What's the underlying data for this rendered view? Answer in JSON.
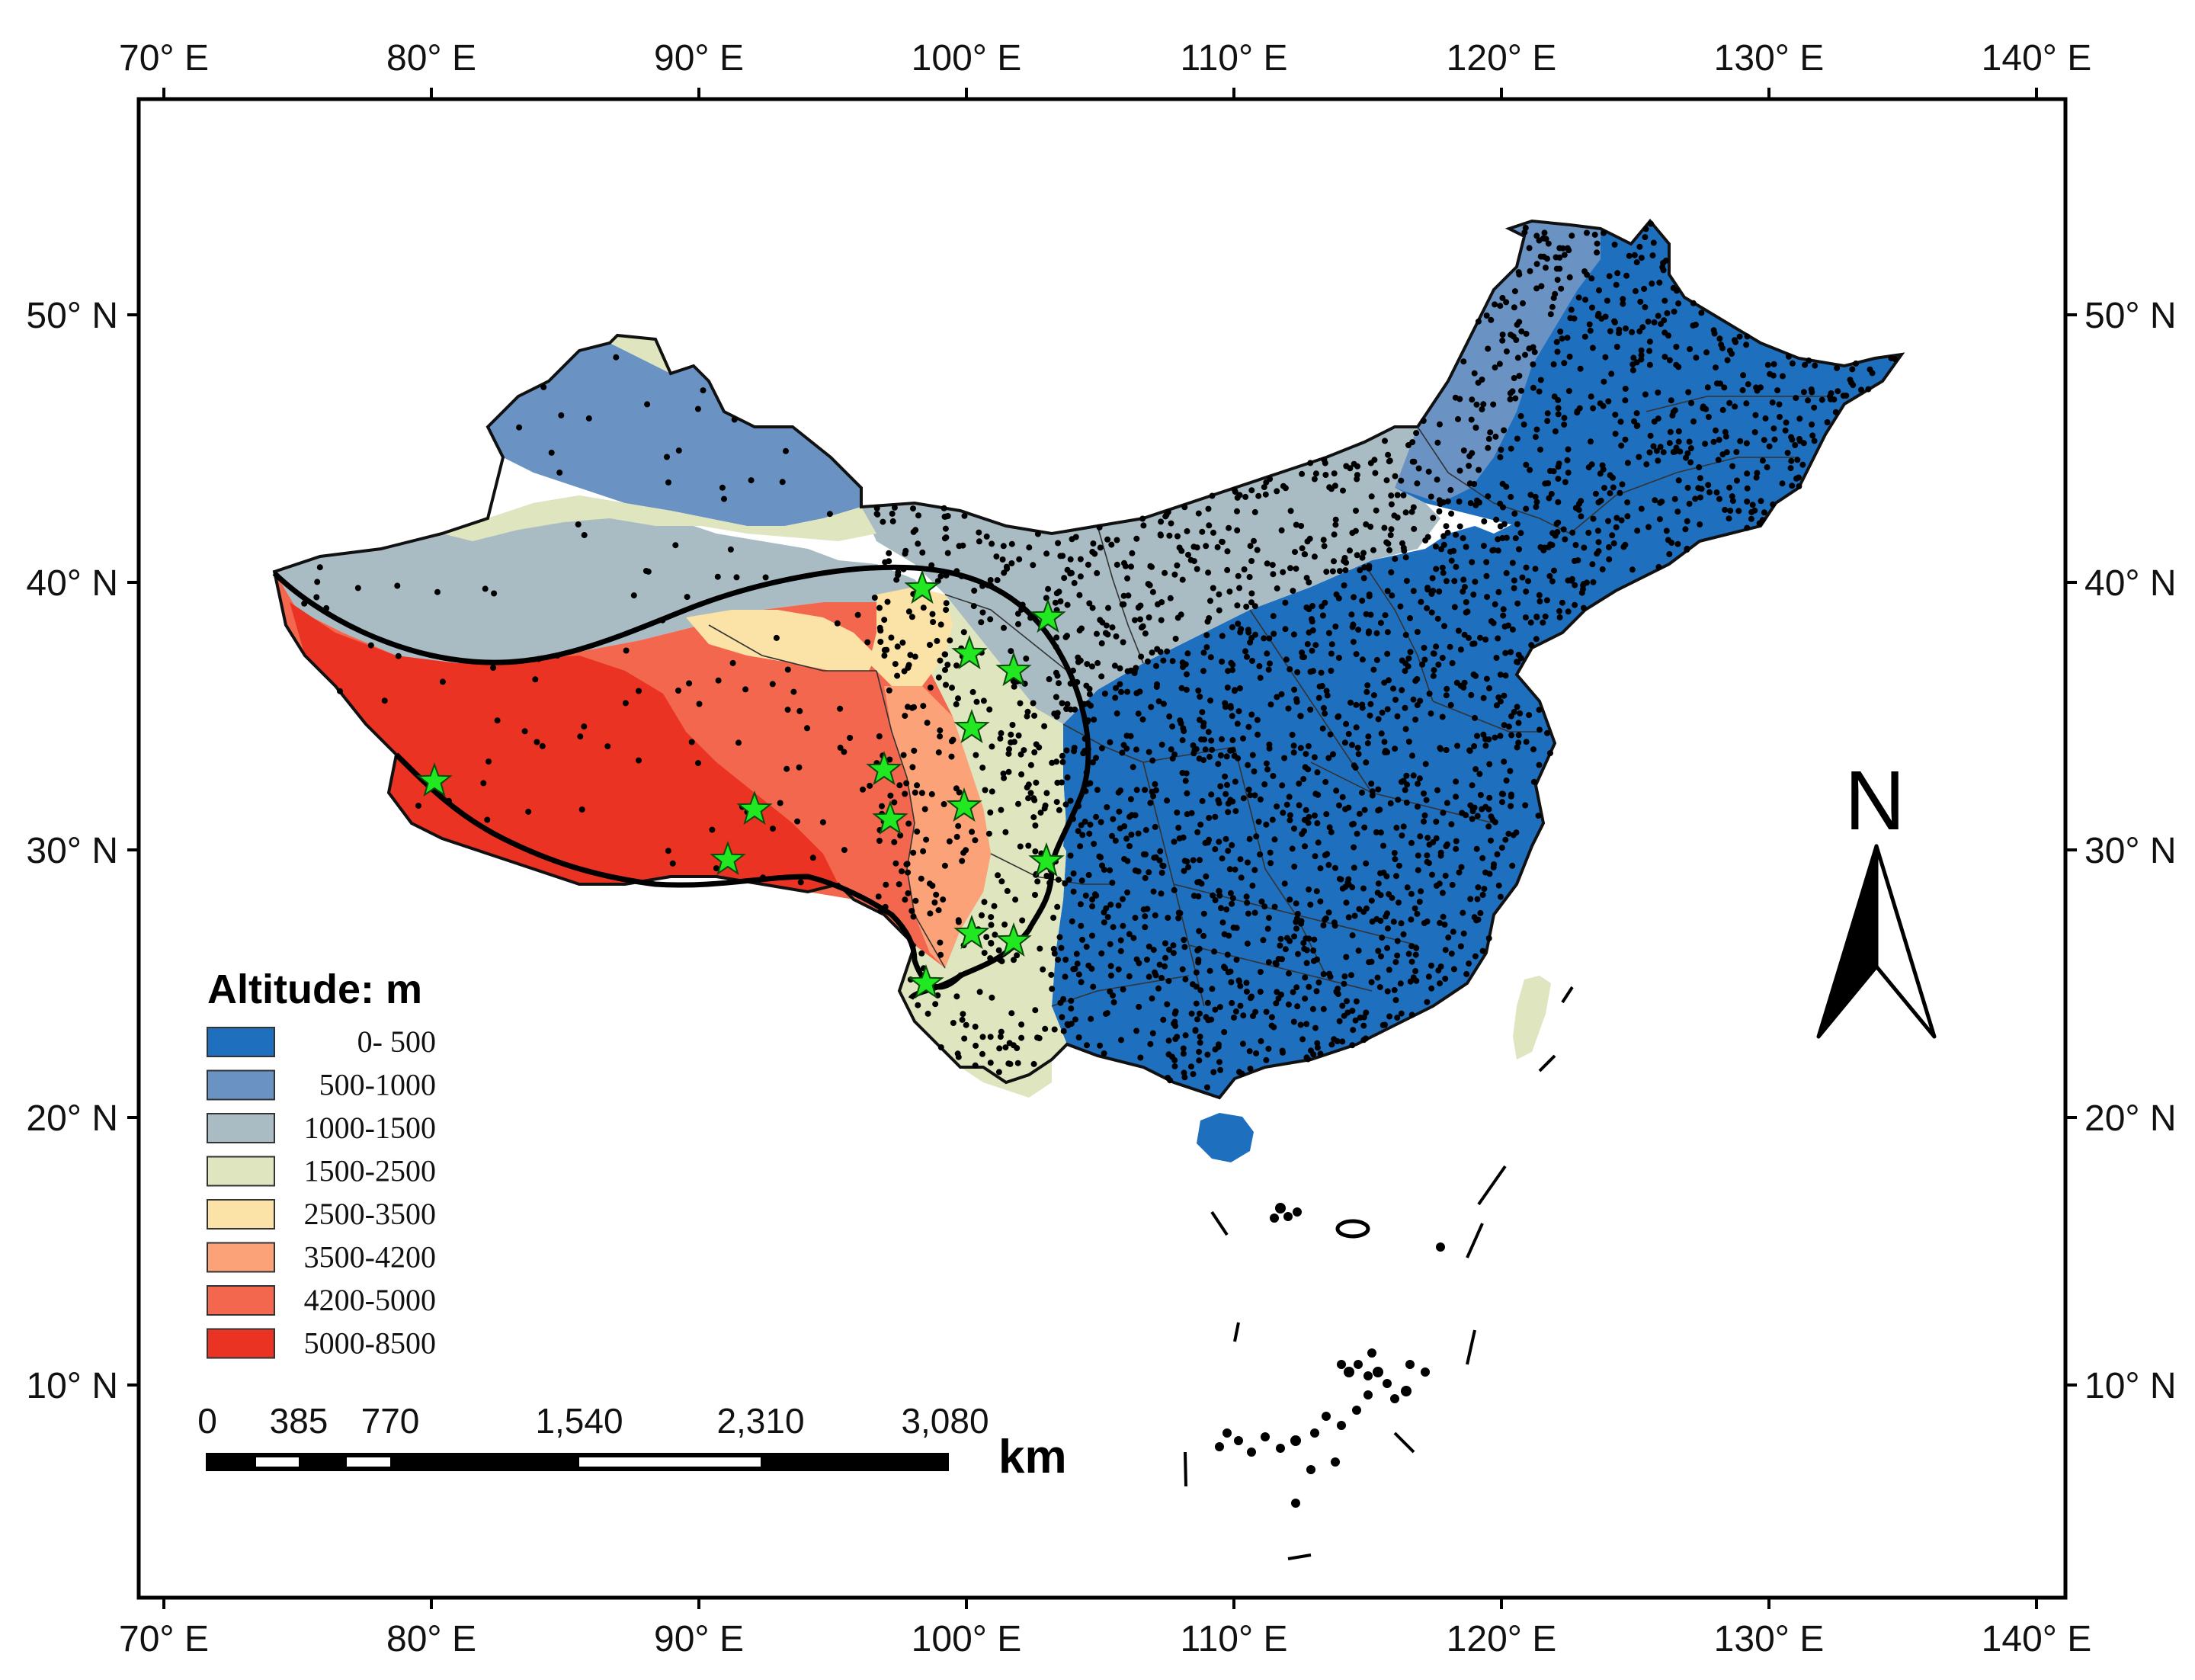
{
  "map": {
    "longitude_labels": [
      "70° E",
      "80° E",
      "90° E",
      "100° E",
      "110° E",
      "120° E",
      "130° E",
      "140° E"
    ],
    "latitude_labels": [
      "50° N",
      "40° N",
      "30° N",
      "20° N",
      "10° N"
    ],
    "legend": {
      "title": "Altitude: m",
      "classes": [
        {
          "label": "0- 500",
          "color": "#1f6fbf"
        },
        {
          "label": "500-1000",
          "color": "#6a93c4"
        },
        {
          "label": "1000-1500",
          "color": "#a9bcc3"
        },
        {
          "label": "1500-2500",
          "color": "#dfe5bf"
        },
        {
          "label": "2500-3500",
          "color": "#fbe2a6"
        },
        {
          "label": "3500-4200",
          "color": "#fba278"
        },
        {
          "label": "4200-5000",
          "color": "#f2674e"
        },
        {
          "label": "5000-8500",
          "color": "#ea3323"
        }
      ]
    },
    "scale_bar": {
      "labels": [
        "0",
        "385",
        "770",
        "1,540",
        "2,310",
        "3,080"
      ],
      "unit": "km"
    },
    "north_arrow": {
      "label": "N",
      "icon": "north-arrow-icon"
    },
    "marker_icon": "green-star-icon",
    "marker_color": "#22e822",
    "station_dot_color": "#000000",
    "boundary_line_color": "#000000"
  }
}
